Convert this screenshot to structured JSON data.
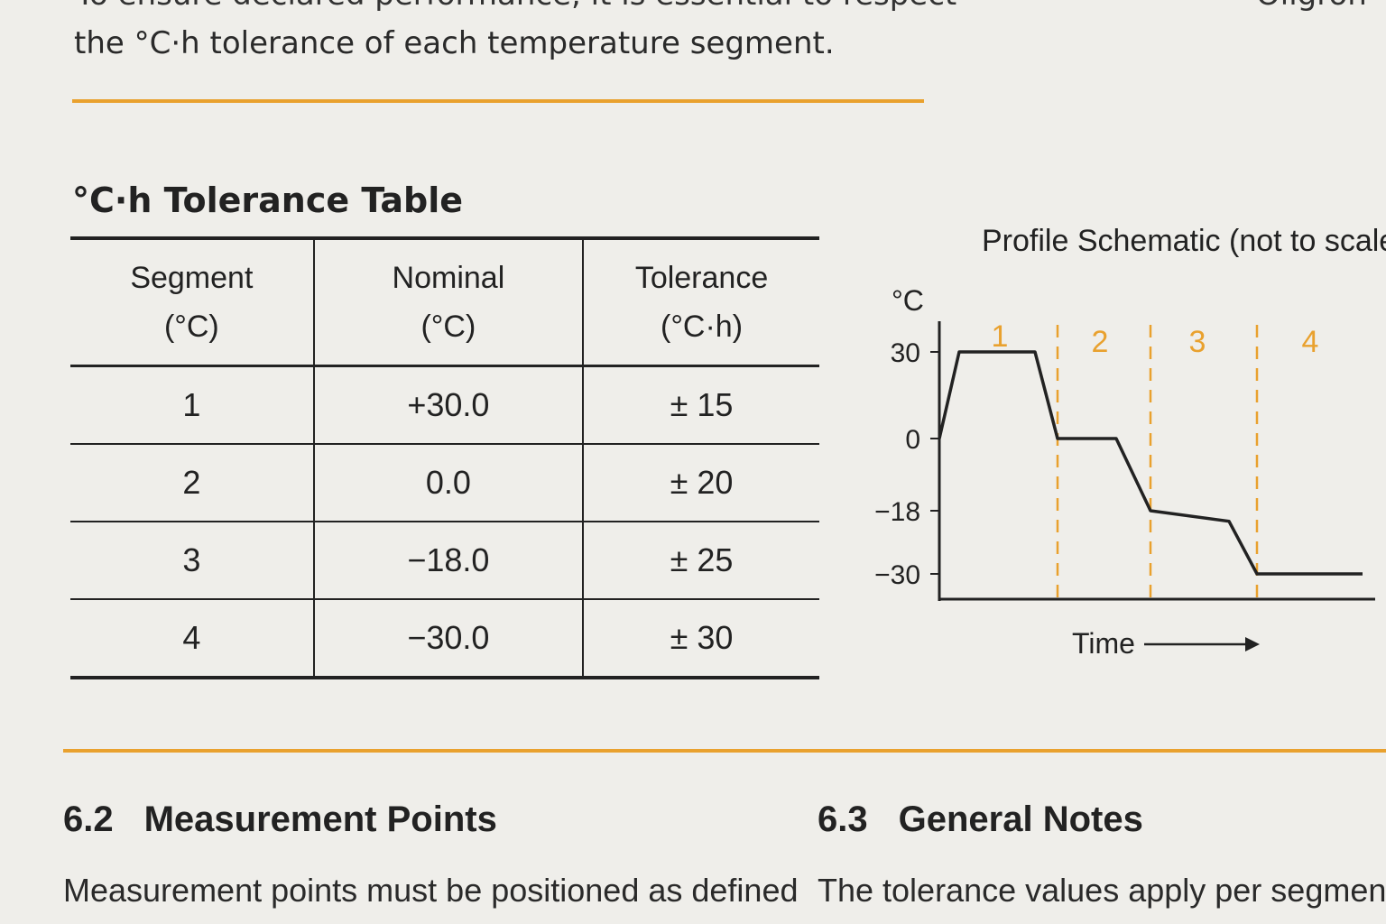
{
  "intro": {
    "partial_line": "To ensure declared performance, it is essential to respect",
    "line2": "the °C·h tolerance of each temperature segment.",
    "partial_right": "Oligron"
  },
  "accent_color": "#e9a12e",
  "table": {
    "title": "°C·h Tolerance Table",
    "headers": [
      {
        "line1": "Segment",
        "line2": "(°C)"
      },
      {
        "line1": "Nominal",
        "line2": "(°C)"
      },
      {
        "line1": "Tolerance",
        "line2": "(°C·h)"
      }
    ],
    "rows": [
      {
        "segment": "1",
        "nominal": "+30.0",
        "tolerance": "± 15"
      },
      {
        "segment": "2",
        "nominal": "0.0",
        "tolerance": "± 20"
      },
      {
        "segment": "3",
        "nominal": "−18.0",
        "tolerance": "± 25"
      },
      {
        "segment": "4",
        "nominal": "−30.0",
        "tolerance": "± 30"
      }
    ]
  },
  "chart_data": {
    "type": "line",
    "title": "Profile Schematic (not to scale)",
    "ylabel": "°C",
    "xlabel": "Time",
    "y_ticks": [
      30,
      0,
      -18,
      -30
    ],
    "y_tick_labels": [
      "30",
      "0",
      "−18",
      "−30"
    ],
    "segment_labels": [
      "1",
      "2",
      "3",
      "4"
    ],
    "profile_y": [
      0,
      30,
      30,
      0,
      0,
      -18,
      -20,
      -30,
      -30
    ],
    "segment_label_color": "#e9a12e",
    "line_color": "#222222"
  },
  "sections": [
    {
      "number": "6.2",
      "title": "Measurement Points",
      "body": "Measurement points must be positioned as defined"
    },
    {
      "number": "6.3",
      "title": "General Notes",
      "body": "The tolerance values apply per segment"
    }
  ]
}
